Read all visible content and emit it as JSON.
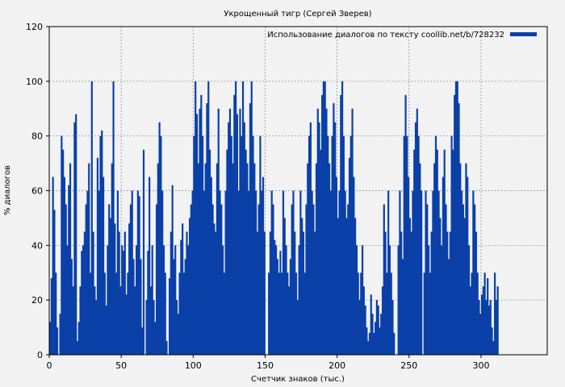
{
  "chart_data": {
    "type": "bar",
    "title": "Укрощенный тигр (Сергей Зверев)",
    "xlabel": "Счетчик знаков (тыс.)",
    "ylabel": "% диалогов",
    "xlim": [
      0,
      346
    ],
    "ylim": [
      0,
      120
    ],
    "x_ticks": [
      "0",
      "50",
      "100",
      "150",
      "200",
      "250",
      "300"
    ],
    "y_ticks": [
      "0",
      "20",
      "40",
      "60",
      "80",
      "100",
      "120"
    ],
    "grid": true,
    "legend_position": "top-right",
    "series": [
      {
        "name": "Использование диалогов по тексту coollib.net/b/728232",
        "color": "#0a40a8",
        "x_step": 1,
        "values": [
          12,
          28,
          65,
          53,
          30,
          10,
          0,
          15,
          80,
          75,
          65,
          55,
          40,
          62,
          70,
          35,
          25,
          85,
          88,
          5,
          12,
          25,
          38,
          40,
          45,
          55,
          60,
          70,
          30,
          100,
          45,
          25,
          20,
          72,
          60,
          80,
          82,
          65,
          30,
          18,
          40,
          55,
          50,
          70,
          100,
          48,
          30,
          60,
          45,
          25,
          40,
          38,
          45,
          22,
          30,
          48,
          55,
          60,
          35,
          25,
          40,
          60,
          58,
          35,
          10,
          75,
          0,
          20,
          38,
          65,
          25,
          40,
          20,
          12,
          55,
          70,
          85,
          80,
          60,
          40,
          30,
          5,
          0,
          28,
          45,
          62,
          35,
          40,
          20,
          15,
          30,
          42,
          48,
          30,
          35,
          45,
          40,
          50,
          55,
          60,
          80,
          100,
          88,
          70,
          90,
          95,
          80,
          60,
          70,
          92,
          100,
          75,
          65,
          55,
          48,
          45,
          70,
          90,
          60,
          55,
          40,
          30,
          60,
          75,
          85,
          90,
          80,
          70,
          95,
          100,
          88,
          60,
          90,
          80,
          100,
          85,
          75,
          70,
          60,
          92,
          100,
          80,
          70,
          60,
          45,
          55,
          80,
          60,
          65,
          45,
          0,
          0,
          30,
          45,
          60,
          55,
          42,
          40,
          35,
          30,
          38,
          30,
          60,
          50,
          40,
          30,
          25,
          35,
          55,
          60,
          45,
          30,
          20,
          40,
          60,
          50,
          45,
          30,
          55,
          70,
          80,
          85,
          60,
          55,
          45,
          70,
          90,
          85,
          75,
          95,
          100,
          100,
          90,
          80,
          70,
          60,
          80,
          92,
          85,
          65,
          50,
          60,
          95,
          100,
          80,
          60,
          50,
          55,
          72,
          80,
          90,
          65,
          50,
          40,
          30,
          20,
          30,
          40,
          25,
          18,
          10,
          5,
          8,
          22,
          15,
          8,
          12,
          20,
          18,
          10,
          15,
          25,
          55,
          45,
          30,
          60,
          40,
          30,
          20,
          8,
          0,
          0,
          40,
          60,
          45,
          35,
          80,
          95,
          80,
          65,
          50,
          45,
          60,
          75,
          85,
          90,
          80,
          70,
          60,
          0,
          30,
          60,
          55,
          40,
          30,
          45,
          60,
          70,
          80,
          75,
          60,
          50,
          40,
          65,
          75,
          55,
          45,
          35,
          45,
          80,
          75,
          95,
          100,
          100,
          92,
          70,
          60,
          55,
          50,
          70,
          65,
          40,
          25,
          30,
          60,
          55,
          45,
          30,
          20,
          15,
          22,
          25,
          30,
          20,
          28,
          18,
          20,
          10,
          5,
          30,
          20,
          25
        ]
      }
    ]
  }
}
